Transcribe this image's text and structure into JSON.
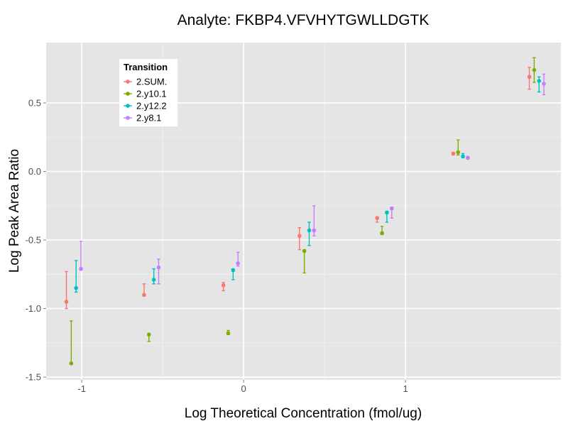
{
  "chart_data": {
    "type": "scatter",
    "title": "Analyte: FKBP4.VFVHYTGWLLDGTK",
    "xlabel": "Log Theoretical Concentration (fmol/ug)",
    "ylabel": "Log Peak Area Ratio",
    "xlim": [
      -1.22,
      1.96
    ],
    "ylim": [
      -1.52,
      0.94
    ],
    "x_ticks": [
      -1,
      0,
      1
    ],
    "x_tick_labels": [
      "-1",
      "0",
      "1"
    ],
    "y_ticks": [
      -1.5,
      -1.0,
      -0.5,
      0.0,
      0.5
    ],
    "y_tick_labels": [
      "-1.5",
      "-1.0",
      "-0.5",
      "0.0",
      "0.5"
    ],
    "grid": true,
    "legend": {
      "title": "Transition",
      "position": "top-left"
    },
    "x_levels": [
      -1.05,
      -0.57,
      -0.08,
      0.39,
      0.87,
      1.34,
      1.81
    ],
    "series": [
      {
        "name": "2.SUM.",
        "color": "#F8766D",
        "x": [
          -1.05,
          -0.57,
          -0.08,
          0.39,
          0.87,
          1.34,
          1.81
        ],
        "y": [
          -0.95,
          -0.9,
          -0.83,
          -0.47,
          -0.34,
          0.13,
          0.69
        ],
        "y_low": [
          -1.0,
          -0.91,
          -0.87,
          -0.57,
          -0.37,
          0.12,
          0.6
        ],
        "y_high": [
          -0.73,
          -0.82,
          -0.81,
          -0.41,
          -0.33,
          0.14,
          0.76
        ]
      },
      {
        "name": "2.y10.1",
        "color": "#7CAE00",
        "x": [
          -1.05,
          -0.57,
          -0.08,
          0.39,
          0.87,
          1.34,
          1.81
        ],
        "y": [
          -1.4,
          -1.19,
          -1.18,
          -0.58,
          -0.45,
          0.14,
          0.74
        ],
        "y_low": [
          -1.4,
          -1.24,
          -1.19,
          -0.74,
          -0.46,
          0.12,
          0.65
        ],
        "y_high": [
          -1.09,
          -1.18,
          -1.16,
          -0.57,
          -0.4,
          0.23,
          0.83
        ]
      },
      {
        "name": "2.y12.2",
        "color": "#00BFC4",
        "x": [
          -1.05,
          -0.57,
          -0.08,
          0.39,
          0.87,
          1.34,
          1.81
        ],
        "y": [
          -0.85,
          -0.79,
          -0.72,
          -0.43,
          -0.3,
          0.11,
          0.66
        ],
        "y_low": [
          -0.88,
          -0.82,
          -0.79,
          -0.54,
          -0.37,
          0.1,
          0.58
        ],
        "y_high": [
          -0.65,
          -0.71,
          -0.71,
          -0.37,
          -0.29,
          0.13,
          0.69
        ]
      },
      {
        "name": "2.y8.1",
        "color": "#C77CFF",
        "x": [
          -1.05,
          -0.57,
          -0.08,
          0.39,
          0.87,
          1.34,
          1.81
        ],
        "y": [
          -0.71,
          -0.7,
          -0.67,
          -0.43,
          -0.27,
          0.1,
          0.64
        ],
        "y_low": [
          -0.72,
          -0.82,
          -0.69,
          -0.47,
          -0.34,
          0.09,
          0.56
        ],
        "y_high": [
          -0.51,
          -0.64,
          -0.59,
          -0.25,
          -0.26,
          0.11,
          0.71
        ]
      }
    ]
  }
}
